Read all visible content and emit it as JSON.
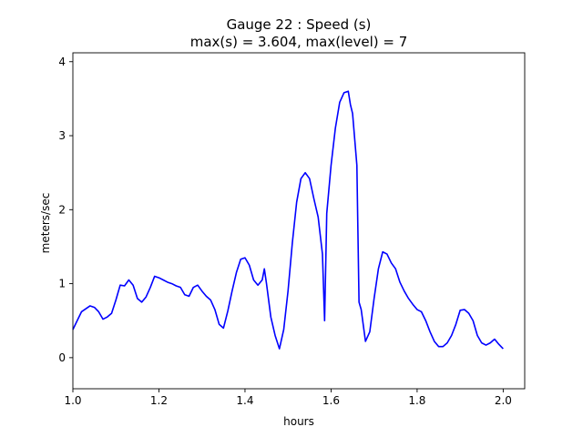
{
  "chart_data": {
    "type": "line",
    "title_line1": "Gauge 22 : Speed (s)",
    "title_line2": "max(s) =   3.604,    max(level) = 7",
    "xlabel": "hours",
    "ylabel": "meters/sec",
    "xlim": [
      1.0,
      2.05
    ],
    "ylim": [
      -0.42,
      4.12
    ],
    "x_ticks": [
      1.0,
      1.2,
      1.4,
      1.6,
      1.8,
      2.0
    ],
    "x_tick_labels": [
      "1.0",
      "1.2",
      "1.4",
      "1.6",
      "1.8",
      "2.0"
    ],
    "y_ticks": [
      0,
      1,
      2,
      3,
      4
    ],
    "y_tick_labels": [
      "0",
      "1",
      "2",
      "3",
      "4"
    ],
    "grid": false,
    "series": [
      {
        "color": "#0000ff",
        "x": [
          1.0,
          1.01,
          1.02,
          1.03,
          1.04,
          1.05,
          1.06,
          1.07,
          1.08,
          1.09,
          1.1,
          1.11,
          1.12,
          1.13,
          1.14,
          1.15,
          1.16,
          1.17,
          1.18,
          1.19,
          1.2,
          1.21,
          1.22,
          1.23,
          1.24,
          1.25,
          1.26,
          1.27,
          1.28,
          1.29,
          1.3,
          1.31,
          1.32,
          1.33,
          1.34,
          1.35,
          1.36,
          1.37,
          1.38,
          1.39,
          1.4,
          1.41,
          1.42,
          1.43,
          1.44,
          1.445,
          1.45,
          1.46,
          1.47,
          1.48,
          1.49,
          1.5,
          1.51,
          1.52,
          1.53,
          1.54,
          1.55,
          1.56,
          1.57,
          1.58,
          1.585,
          1.59,
          1.6,
          1.61,
          1.62,
          1.63,
          1.64,
          1.645,
          1.65,
          1.655,
          1.66,
          1.665,
          1.67,
          1.68,
          1.69,
          1.7,
          1.71,
          1.72,
          1.73,
          1.74,
          1.75,
          1.76,
          1.77,
          1.78,
          1.79,
          1.8,
          1.81,
          1.82,
          1.83,
          1.84,
          1.85,
          1.86,
          1.87,
          1.88,
          1.89,
          1.9,
          1.91,
          1.92,
          1.93,
          1.94,
          1.95,
          1.96,
          1.97,
          1.98,
          1.99,
          2.0
        ],
        "y": [
          0.38,
          0.5,
          0.62,
          0.66,
          0.7,
          0.68,
          0.62,
          0.52,
          0.55,
          0.6,
          0.78,
          0.98,
          0.97,
          1.05,
          0.98,
          0.8,
          0.75,
          0.82,
          0.95,
          1.1,
          1.08,
          1.05,
          1.02,
          1.0,
          0.97,
          0.95,
          0.85,
          0.83,
          0.95,
          0.98,
          0.9,
          0.83,
          0.78,
          0.65,
          0.45,
          0.4,
          0.63,
          0.9,
          1.15,
          1.33,
          1.35,
          1.25,
          1.05,
          0.98,
          1.05,
          1.2,
          1.0,
          0.55,
          0.3,
          0.12,
          0.38,
          0.9,
          1.55,
          2.1,
          2.42,
          2.5,
          2.42,
          2.15,
          1.9,
          1.4,
          0.5,
          1.95,
          2.6,
          3.1,
          3.45,
          3.58,
          3.6,
          3.42,
          3.3,
          2.95,
          2.6,
          0.75,
          0.65,
          0.22,
          0.35,
          0.8,
          1.2,
          1.43,
          1.4,
          1.28,
          1.2,
          1.02,
          0.9,
          0.8,
          0.72,
          0.65,
          0.62,
          0.5,
          0.35,
          0.22,
          0.15,
          0.15,
          0.2,
          0.3,
          0.45,
          0.64,
          0.65,
          0.6,
          0.5,
          0.3,
          0.2,
          0.17,
          0.2,
          0.25,
          0.18,
          0.12
        ]
      }
    ]
  }
}
